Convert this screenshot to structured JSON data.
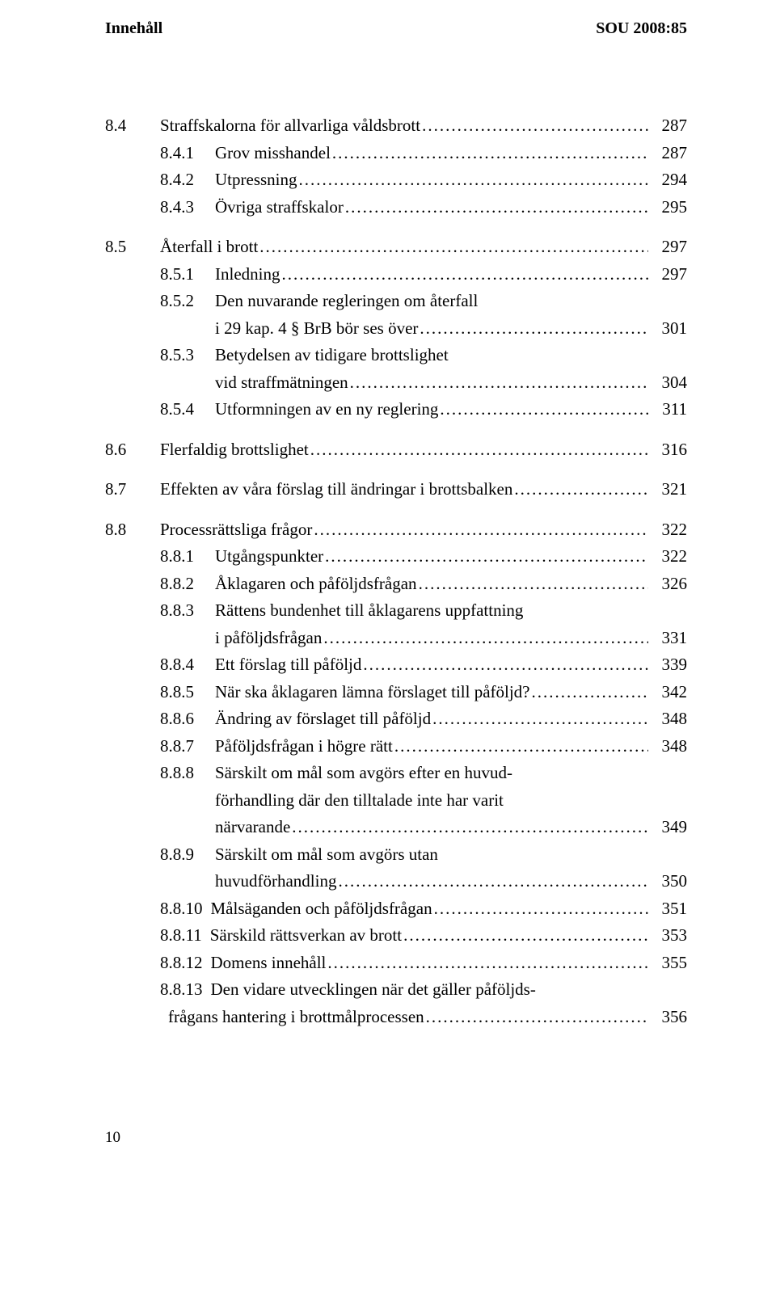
{
  "header": {
    "left": "Innehåll",
    "right": "SOU 2008:85"
  },
  "toc": [
    {
      "type": "main",
      "num": "8.4",
      "title": "Straffskalorna för allvarliga våldsbrott",
      "page": "287"
    },
    {
      "type": "sub",
      "num": "8.4.1",
      "title": "Grov misshandel",
      "page": "287"
    },
    {
      "type": "sub",
      "num": "8.4.2",
      "title": "Utpressning",
      "page": "294"
    },
    {
      "type": "sub",
      "num": "8.4.3",
      "title": "Övriga straffskalor",
      "page": "295"
    },
    {
      "type": "main",
      "gap": true,
      "num": "8.5",
      "title": "Återfall i brott",
      "page": "297"
    },
    {
      "type": "sub",
      "num": "8.5.1",
      "title": "Inledning",
      "page": "297"
    },
    {
      "type": "sub_multi",
      "num": "8.5.2",
      "title1": "Den nuvarande regleringen om återfall",
      "title2": "i 29 kap. 4 § BrB bör ses över",
      "page": "301"
    },
    {
      "type": "sub_multi",
      "num": "8.5.3",
      "title1": "Betydelsen av tidigare brottslighet",
      "title2": "vid straffmätningen",
      "page": "304"
    },
    {
      "type": "sub",
      "num": "8.5.4",
      "title": "Utformningen av en ny reglering",
      "page": "311"
    },
    {
      "type": "main",
      "gap": true,
      "num": "8.6",
      "title": "Flerfaldig brottslighet",
      "page": "316"
    },
    {
      "type": "main",
      "gap": true,
      "num": "8.7",
      "title": "Effekten av våra förslag till ändringar i brottsbalken",
      "page": "321"
    },
    {
      "type": "main",
      "gap": true,
      "num": "8.8",
      "title": "Processrättsliga frågor",
      "page": "322"
    },
    {
      "type": "sub",
      "num": "8.8.1",
      "title": "Utgångspunkter",
      "page": "322"
    },
    {
      "type": "sub",
      "num": "8.8.2",
      "title": "Åklagaren och påföljdsfrågan",
      "page": "326"
    },
    {
      "type": "sub_multi",
      "num": "8.8.3",
      "title1": "Rättens bundenhet till åklagarens uppfattning",
      "title2": "i påföljdsfrågan",
      "page": "331"
    },
    {
      "type": "sub",
      "num": "8.8.4",
      "title": "Ett förslag till påföljd",
      "page": "339"
    },
    {
      "type": "sub",
      "num": "8.8.5",
      "title": "När ska åklagaren lämna förslaget till påföljd?",
      "page": "342"
    },
    {
      "type": "sub",
      "num": "8.8.6",
      "title": "Ändring av förslaget till påföljd",
      "page": "348"
    },
    {
      "type": "sub",
      "num": "8.8.7",
      "title": "Påföljdsfrågan i högre rätt",
      "page": "348"
    },
    {
      "type": "sub_multi3",
      "num": "8.8.8",
      "title1": "Särskilt om mål som avgörs efter en huvud-",
      "title2": "förhandling där den tilltalade inte har varit",
      "title3": "närvarande",
      "page": "349"
    },
    {
      "type": "sub_multi",
      "num": "8.8.9",
      "title1": "Särskilt om mål som avgörs utan",
      "title2": "huvudförhandling",
      "page": "350"
    },
    {
      "type": "sub",
      "num": "8.8.10",
      "title": "Målsäganden och påföljdsfrågan",
      "page": "351",
      "tight_num": true
    },
    {
      "type": "sub",
      "num": "8.8.11",
      "title": "Särskild rättsverkan av brott",
      "page": "353",
      "tight_num": true
    },
    {
      "type": "sub",
      "num": "8.8.12",
      "title": "Domens innehåll",
      "page": "355",
      "tight_num": true
    },
    {
      "type": "sub_multi",
      "num": "8.8.13",
      "title1": "Den vidare utvecklingen när det gäller påföljds-",
      "title2": "frågans hantering i brottmålprocessen",
      "page": "356",
      "tight_num": true
    }
  ],
  "footer": {
    "page_number": "10"
  }
}
